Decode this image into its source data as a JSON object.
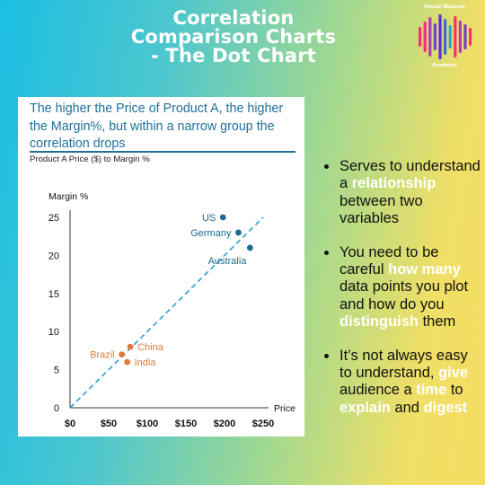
{
  "header": {
    "title_line1": "Correlation",
    "title_line2": "Comparison Charts",
    "title_line3": "- The Dot Chart"
  },
  "logo": {
    "top_text": "Visual Wizards",
    "bottom_text": "Academy",
    "bar_colors": [
      "#ff2d78",
      "#ff2d78",
      "#b43ab4",
      "#7a3ccc",
      "#5e2bd6",
      "#3a6bd8",
      "#2aa4d8",
      "#ff2d78",
      "#b43ab4",
      "#7a3ccc",
      "#ff2d78"
    ]
  },
  "card": {
    "heading_line1": "The higher the Price of Product A, the higher",
    "heading_line2": "the Margin%, but within a narrow group the",
    "heading_line3": "correlation drops",
    "subtitle": "Product A Price ($) to Margin %"
  },
  "chart_data": {
    "type": "scatter",
    "title": "Product A Price ($) to Margin %",
    "xlabel": "Price",
    "ylabel": "Margin %",
    "xlim": [
      0,
      250
    ],
    "ylim": [
      0,
      25
    ],
    "xticks": [
      0,
      50,
      100,
      150,
      200,
      250
    ],
    "xtick_labels": [
      "$0",
      "$50",
      "$100",
      "$150",
      "$200",
      "$250"
    ],
    "yticks": [
      0,
      5,
      10,
      15,
      20,
      25
    ],
    "ytick_labels": [
      "0",
      "5",
      "10",
      "15",
      "20",
      "25"
    ],
    "grid": false,
    "trendline": {
      "from": [
        0,
        0
      ],
      "to": [
        250,
        25
      ],
      "style": "dashed",
      "color": "#2a9fd0"
    },
    "series": [
      {
        "color": "#1e6a8f",
        "points": [
          {
            "label": "US",
            "x": 198,
            "y": 25,
            "label_side": "left"
          },
          {
            "label": "Germany",
            "x": 218,
            "y": 23,
            "label_side": "left"
          },
          {
            "label": "Australia",
            "x": 233,
            "y": 21,
            "label_side": "below-left"
          }
        ]
      },
      {
        "color": "#e07b39",
        "points": [
          {
            "label": "China",
            "x": 78,
            "y": 8,
            "label_side": "right"
          },
          {
            "label": "Brazil",
            "x": 67,
            "y": 7,
            "label_side": "left"
          },
          {
            "label": "India",
            "x": 74,
            "y": 6,
            "label_side": "right"
          }
        ]
      }
    ]
  },
  "bullets": [
    {
      "parts": [
        {
          "text": "Serves to understand a "
        },
        {
          "text": "relationship",
          "hl": true
        },
        {
          "text": " between two variables"
        }
      ]
    },
    {
      "parts": [
        {
          "text": "You need to be careful "
        },
        {
          "text": "how many",
          "hl": true
        },
        {
          "text": " data points you plot and how do you "
        },
        {
          "text": "distinguish",
          "hl": true
        },
        {
          "text": " them"
        }
      ]
    },
    {
      "parts": [
        {
          "text": "It’s not always easy to understand, "
        },
        {
          "text": "give",
          "hl": true
        },
        {
          "text": " audience a "
        },
        {
          "text": "time",
          "hl": true
        },
        {
          "text": " to "
        },
        {
          "text": "explain",
          "hl": true
        },
        {
          "text": " and "
        },
        {
          "text": "digest",
          "hl": true
        }
      ]
    }
  ]
}
